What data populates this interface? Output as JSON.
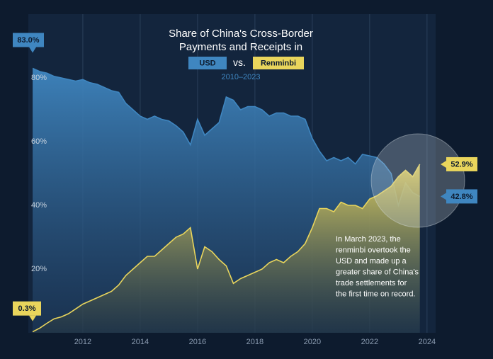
{
  "chart_data": {
    "type": "area",
    "title": [
      "Share of China's Cross-Border",
      "Payments and Receipts in"
    ],
    "legend_separator": "vs.",
    "subtitle": "2010–2023",
    "annotation": [
      "In March 2023, the",
      "renminbi overtook the",
      "USD and made up a",
      "greater share of China's",
      "trade settlements for",
      "the first time on record."
    ],
    "x": [
      2010.25,
      2010.5,
      2010.75,
      2011,
      2011.25,
      2011.5,
      2011.75,
      2012,
      2012.25,
      2012.5,
      2012.75,
      2013,
      2013.25,
      2013.5,
      2013.75,
      2014,
      2014.25,
      2014.5,
      2014.75,
      2015,
      2015.25,
      2015.5,
      2015.75,
      2016,
      2016.25,
      2016.5,
      2016.75,
      2017,
      2017.25,
      2017.5,
      2017.75,
      2018,
      2018.25,
      2018.5,
      2018.75,
      2019,
      2019.25,
      2019.5,
      2019.75,
      2020,
      2020.25,
      2020.5,
      2020.75,
      2021,
      2021.25,
      2021.5,
      2021.75,
      2022,
      2022.25,
      2022.5,
      2022.75,
      2023,
      2023.25,
      2023.5,
      2023.75
    ],
    "series": [
      {
        "name": "USD",
        "color": "#3f86c0",
        "values": [
          83.0,
          82,
          81.5,
          80.5,
          80,
          79.5,
          79,
          79.5,
          78.5,
          78,
          77,
          76,
          75.5,
          72,
          70,
          68,
          67,
          68,
          67,
          66.5,
          65,
          63,
          59,
          67,
          62,
          64,
          66,
          74,
          73,
          70,
          71,
          71,
          70,
          68,
          69,
          69,
          68,
          68,
          67,
          61,
          57,
          54,
          55,
          54,
          55,
          53,
          56,
          55.5,
          55,
          53,
          50,
          40,
          47,
          44,
          42.8
        ],
        "value_labels": [
          "83.0%",
          null,
          null,
          null,
          null,
          null,
          null,
          null,
          null,
          null,
          null,
          null,
          null,
          null,
          null,
          null,
          null,
          null,
          null,
          null,
          null,
          null,
          null,
          null,
          null,
          null,
          null,
          null,
          null,
          null,
          null,
          null,
          null,
          null,
          null,
          null,
          null,
          null,
          null,
          null,
          null,
          null,
          null,
          null,
          null,
          null,
          null,
          null,
          null,
          null,
          null,
          null,
          null,
          null,
          "42.8%"
        ]
      },
      {
        "name": "Renminbi",
        "color": "#e9d55c",
        "values": [
          0.3,
          1.5,
          3,
          4.4,
          5,
          6,
          7.5,
          9,
          10,
          11,
          12,
          13,
          15,
          18,
          20,
          22,
          24,
          24,
          26,
          28,
          30,
          31,
          33,
          20,
          27,
          25.5,
          23,
          21,
          15.5,
          17,
          18,
          19,
          20,
          22,
          23,
          22,
          24,
          25.5,
          28,
          33,
          39,
          39,
          38,
          41,
          40,
          40,
          39,
          42,
          43,
          44.5,
          46,
          49,
          51,
          49,
          52.9
        ],
        "value_labels": [
          "0.3%",
          null,
          null,
          null,
          null,
          null,
          null,
          null,
          null,
          null,
          null,
          null,
          null,
          null,
          null,
          null,
          null,
          null,
          null,
          null,
          null,
          null,
          null,
          null,
          null,
          null,
          null,
          null,
          null,
          null,
          null,
          null,
          null,
          null,
          null,
          null,
          null,
          null,
          null,
          null,
          null,
          null,
          null,
          null,
          null,
          null,
          null,
          null,
          null,
          null,
          null,
          null,
          null,
          null,
          "52.9%"
        ]
      }
    ],
    "xlim": [
      2010.1,
      2024.3
    ],
    "xticks": [
      2012,
      2014,
      2016,
      2018,
      2020,
      2022,
      2024
    ],
    "ylim": [
      0,
      100
    ],
    "yticks": [
      {
        "value": 20,
        "label": "20%"
      },
      {
        "value": 40,
        "label": "40%"
      },
      {
        "value": 60,
        "label": "60%"
      },
      {
        "value": 80,
        "label": "80%"
      }
    ],
    "grid": true
  }
}
